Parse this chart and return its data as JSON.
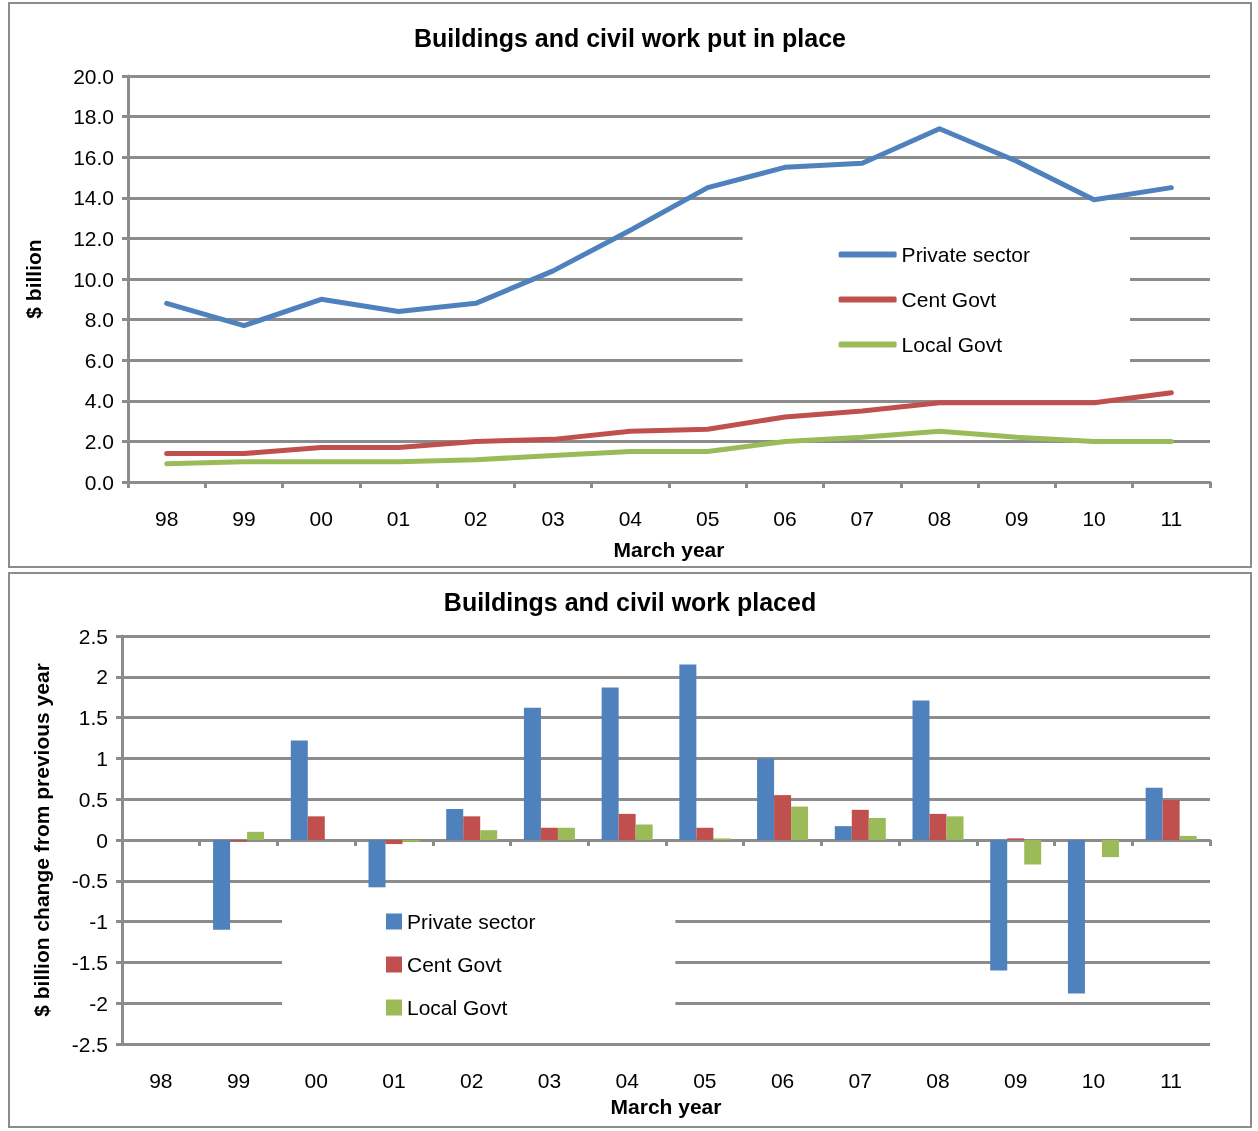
{
  "chart_data": [
    {
      "type": "line",
      "title": "Buildings and civil work put in place",
      "xlabel": "March year",
      "ylabel": "$ billion",
      "categories": [
        "98",
        "99",
        "00",
        "01",
        "02",
        "03",
        "04",
        "05",
        "06",
        "07",
        "08",
        "09",
        "10",
        "11"
      ],
      "series": [
        {
          "name": "Private sector",
          "color": "#4f81bd",
          "values": [
            8.8,
            7.7,
            9.0,
            8.4,
            8.8,
            10.4,
            12.4,
            14.5,
            15.5,
            15.7,
            17.4,
            15.8,
            13.9,
            14.5
          ]
        },
        {
          "name": "Cent Govt",
          "color": "#c0504d",
          "values": [
            1.4,
            1.4,
            1.7,
            1.7,
            2.0,
            2.1,
            2.5,
            2.6,
            3.2,
            3.5,
            3.9,
            3.9,
            3.9,
            4.4
          ]
        },
        {
          "name": "Local Govt",
          "color": "#9bbb59",
          "values": [
            0.9,
            1.0,
            1.0,
            1.0,
            1.1,
            1.3,
            1.5,
            1.5,
            2.0,
            2.2,
            2.5,
            2.2,
            2.0,
            2.0
          ]
        }
      ],
      "ylim": [
        0,
        20
      ],
      "yticks": [
        {
          "value": 0,
          "label": "0.0"
        },
        {
          "value": 2,
          "label": "2.0"
        },
        {
          "value": 4,
          "label": "4.0"
        },
        {
          "value": 6,
          "label": "6.0"
        },
        {
          "value": 8,
          "label": "8.0"
        },
        {
          "value": 10,
          "label": "10.0"
        },
        {
          "value": 12,
          "label": "12.0"
        },
        {
          "value": 14,
          "label": "14.0"
        },
        {
          "value": 16,
          "label": "16.0"
        },
        {
          "value": 18,
          "label": "18.0"
        },
        {
          "value": 20,
          "label": "20.0"
        }
      ],
      "grid": "y",
      "legend": "right",
      "marker": "none",
      "line_style": "solid"
    },
    {
      "type": "bar",
      "title": "Buildings and civil work placed",
      "xlabel": "March year",
      "ylabel": "$ billion change from previous year",
      "categories": [
        "98",
        "99",
        "00",
        "01",
        "02",
        "03",
        "04",
        "05",
        "06",
        "07",
        "08",
        "09",
        "10",
        "11"
      ],
      "series": [
        {
          "name": "Private sector",
          "color": "#4f81bd",
          "values": [
            null,
            -1.1,
            1.22,
            -0.58,
            0.38,
            1.62,
            1.87,
            2.15,
            1.0,
            0.17,
            1.71,
            -1.6,
            -1.88,
            0.64
          ]
        },
        {
          "name": "Cent Govt",
          "color": "#c0504d",
          "values": [
            null,
            -0.02,
            0.29,
            -0.05,
            0.29,
            0.15,
            0.32,
            0.15,
            0.55,
            0.37,
            0.32,
            0.02,
            0,
            0.49
          ]
        },
        {
          "name": "Local Govt",
          "color": "#9bbb59",
          "values": [
            null,
            0.1,
            0,
            -0.02,
            0.12,
            0.15,
            0.19,
            0.02,
            0.41,
            0.27,
            0.29,
            -0.3,
            -0.21,
            0.05
          ]
        }
      ],
      "ylim": [
        -2.5,
        2.5
      ],
      "yticks": [
        -2.5,
        -2,
        -1.5,
        -1,
        -0.5,
        0,
        0.5,
        1,
        1.5,
        2,
        2.5
      ],
      "grid": "y",
      "legend": "bottom left"
    }
  ]
}
